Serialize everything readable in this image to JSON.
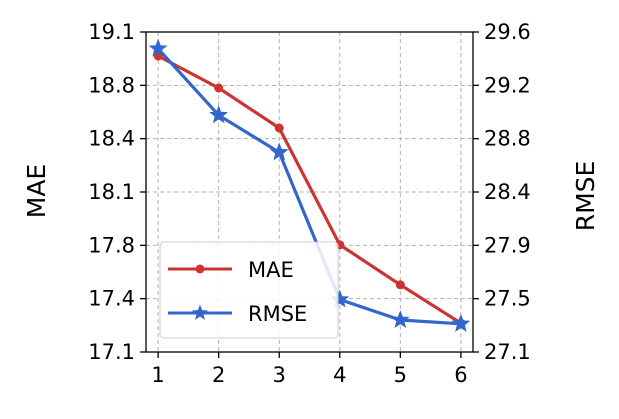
{
  "chart_data": {
    "type": "line",
    "x": [
      1,
      2,
      3,
      4,
      5,
      6
    ],
    "xlim": [
      0.8,
      6.2
    ],
    "x_ticks": [
      "1",
      "2",
      "3",
      "4",
      "5",
      "6"
    ],
    "y_left": {
      "label": "MAE",
      "lim": [
        17.1,
        19.1
      ],
      "ticks": [
        "19.1",
        "18.8",
        "18.4",
        "18.1",
        "17.8",
        "17.4",
        "17.1"
      ]
    },
    "y_right": {
      "label": "RMSE",
      "lim": [
        27.1,
        29.6
      ],
      "ticks": [
        "29.6",
        "29.2",
        "28.8",
        "28.4",
        "27.9",
        "27.5",
        "27.1"
      ]
    },
    "series": [
      {
        "name": "MAE",
        "axis": "left",
        "color": "#cc3333",
        "marker": "circle",
        "values": [
          18.95,
          18.75,
          18.5,
          17.77,
          17.52,
          17.28
        ]
      },
      {
        "name": "RMSE",
        "axis": "right",
        "color": "#3366cc",
        "marker": "star",
        "values": [
          29.47,
          28.95,
          28.66,
          27.51,
          27.35,
          27.32
        ]
      }
    ],
    "grid": true,
    "legend_position": "bottom-left"
  }
}
